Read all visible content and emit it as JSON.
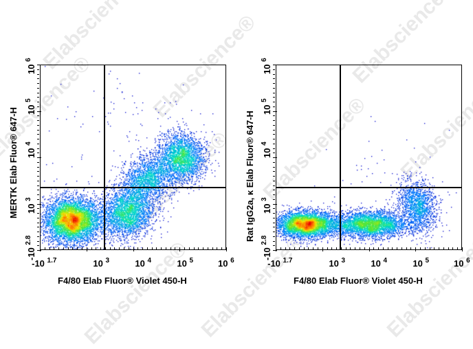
{
  "watermark": "Elabscience®",
  "chart_data": [
    {
      "type": "scatter",
      "title": "",
      "xlabel": "F4/80 Elab Fluor® Violet 450-H",
      "ylabel": "MERTK Elab Fluor® 647-H",
      "x_ticks": [
        {
          "base": "-10",
          "exp": "1.7"
        },
        {
          "base": "10",
          "exp": "3"
        },
        {
          "base": "10",
          "exp": "4"
        },
        {
          "base": "10",
          "exp": "5"
        },
        {
          "base": "10",
          "exp": "6"
        }
      ],
      "y_ticks": [
        {
          "base": "-10",
          "exp": "2.8"
        },
        {
          "base": "10",
          "exp": "3"
        },
        {
          "base": "10",
          "exp": "4"
        },
        {
          "base": "10",
          "exp": "5"
        },
        {
          "base": "10",
          "exp": "6"
        }
      ],
      "x_tick_pos": [
        0.03,
        0.33,
        0.555,
        0.78,
        1.0
      ],
      "y_tick_pos": [
        0.05,
        0.25,
        0.55,
        0.78,
        1.0
      ],
      "gate": {
        "x": 0.345,
        "y": 0.34
      },
      "clusters": [
        {
          "cx": 0.17,
          "cy": 0.16,
          "sx": 0.075,
          "sy": 0.06,
          "n": 5200,
          "rot": 0
        },
        {
          "cx": 0.46,
          "cy": 0.2,
          "sx": 0.07,
          "sy": 0.065,
          "n": 2600,
          "rot": 0.2
        },
        {
          "cx": 0.58,
          "cy": 0.38,
          "sx": 0.08,
          "sy": 0.06,
          "n": 2000,
          "rot": 0.7
        },
        {
          "cx": 0.76,
          "cy": 0.5,
          "sx": 0.06,
          "sy": 0.065,
          "n": 2400,
          "rot": 0.6
        },
        {
          "cx": 0.5,
          "cy": 0.7,
          "sx": 0.25,
          "sy": 0.15,
          "n": 90,
          "rot": 0
        }
      ]
    },
    {
      "type": "scatter",
      "title": "",
      "xlabel": "F4/80 Elab Fluor® Violet 450-H",
      "ylabel": "Rat IgG2a, κ Elab Fluor® 647-H",
      "x_ticks": [
        {
          "base": "-10",
          "exp": "1.7"
        },
        {
          "base": "10",
          "exp": "3"
        },
        {
          "base": "10",
          "exp": "4"
        },
        {
          "base": "10",
          "exp": "5"
        },
        {
          "base": "10",
          "exp": "6"
        }
      ],
      "y_ticks": [
        {
          "base": "-10",
          "exp": "2.8"
        },
        {
          "base": "10",
          "exp": "3"
        },
        {
          "base": "10",
          "exp": "4"
        },
        {
          "base": "10",
          "exp": "5"
        },
        {
          "base": "10",
          "exp": "6"
        }
      ],
      "x_tick_pos": [
        0.03,
        0.33,
        0.555,
        0.78,
        1.0
      ],
      "y_tick_pos": [
        0.05,
        0.25,
        0.55,
        0.78,
        1.0
      ],
      "gate": {
        "x": 0.345,
        "y": 0.34
      },
      "clusters": [
        {
          "cx": 0.16,
          "cy": 0.14,
          "sx": 0.08,
          "sy": 0.035,
          "n": 4200,
          "rot": 0
        },
        {
          "cx": 0.5,
          "cy": 0.14,
          "sx": 0.1,
          "sy": 0.035,
          "n": 3400,
          "rot": 0
        },
        {
          "cx": 0.76,
          "cy": 0.24,
          "sx": 0.05,
          "sy": 0.07,
          "n": 1500,
          "rot": 0.3
        },
        {
          "cx": 0.55,
          "cy": 0.45,
          "sx": 0.2,
          "sy": 0.12,
          "n": 35,
          "rot": 0
        }
      ]
    }
  ]
}
